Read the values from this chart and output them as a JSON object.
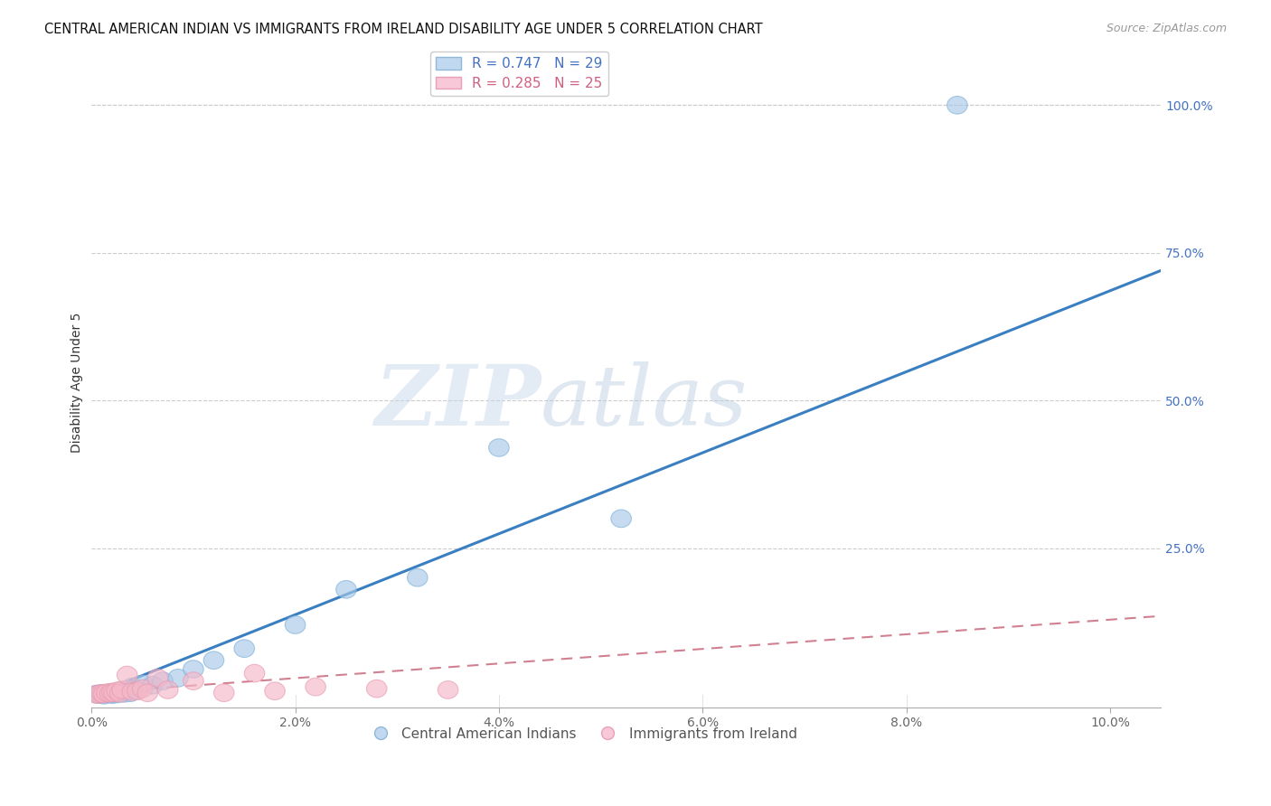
{
  "title": "CENTRAL AMERICAN INDIAN VS IMMIGRANTS FROM IRELAND DISABILITY AGE UNDER 5 CORRELATION CHART",
  "source": "Source: ZipAtlas.com",
  "ylabel": "Disability Age Under 5",
  "x_tick_labels": [
    "0.0%",
    "2.0%",
    "4.0%",
    "6.0%",
    "8.0%",
    "10.0%"
  ],
  "x_tick_vals": [
    0.0,
    2.0,
    4.0,
    6.0,
    8.0,
    10.0
  ],
  "y_tick_labels": [
    "100.0%",
    "75.0%",
    "50.0%",
    "25.0%"
  ],
  "y_tick_vals": [
    100.0,
    75.0,
    50.0,
    25.0
  ],
  "xlim": [
    0.0,
    10.5
  ],
  "ylim": [
    -2.0,
    108.0
  ],
  "legend_entry_1": "R = 0.747   N = 29",
  "legend_entry_2": "R = 0.285   N = 25",
  "legend_label_1": "Central American Indians",
  "legend_label_2": "Immigrants from Ireland",
  "blue_scatter_x": [
    0.05,
    0.08,
    0.1,
    0.12,
    0.15,
    0.18,
    0.2,
    0.22,
    0.25,
    0.28,
    0.3,
    0.32,
    0.35,
    0.38,
    0.4,
    0.45,
    0.5,
    0.6,
    0.7,
    0.85,
    1.0,
    1.2,
    1.5,
    2.0,
    2.5,
    3.2,
    4.0,
    5.2,
    8.5
  ],
  "blue_scatter_y": [
    0.3,
    0.2,
    0.4,
    0.1,
    0.3,
    0.5,
    0.2,
    0.4,
    0.3,
    0.6,
    0.8,
    0.4,
    1.0,
    0.5,
    1.5,
    1.0,
    2.0,
    1.8,
    2.5,
    3.0,
    4.5,
    6.0,
    8.0,
    12.0,
    18.0,
    20.0,
    42.0,
    30.0,
    100.0
  ],
  "pink_scatter_x": [
    0.05,
    0.07,
    0.1,
    0.12,
    0.15,
    0.18,
    0.2,
    0.22,
    0.25,
    0.28,
    0.3,
    0.35,
    0.4,
    0.45,
    0.5,
    0.55,
    0.65,
    0.75,
    1.0,
    1.3,
    1.6,
    1.8,
    2.2,
    2.8,
    3.5
  ],
  "pink_scatter_y": [
    0.2,
    0.3,
    0.4,
    0.3,
    0.5,
    0.4,
    0.6,
    0.5,
    0.8,
    0.4,
    1.0,
    3.5,
    0.7,
    0.8,
    1.2,
    0.5,
    3.0,
    1.0,
    2.5,
    0.5,
    3.8,
    0.8,
    1.5,
    1.2,
    1.0
  ],
  "blue_line_x": [
    0.0,
    10.5
  ],
  "blue_line_y": [
    0.0,
    72.0
  ],
  "pink_line_x": [
    0.0,
    10.5
  ],
  "pink_line_y": [
    0.5,
    13.5
  ],
  "blue_color": "#aac8e8",
  "pink_color": "#f5b8c8",
  "blue_edge_color": "#7ab0d8",
  "pink_edge_color": "#e89ab0",
  "blue_line_color": "#3a7fc1",
  "pink_line_color": "#d08090",
  "watermark_zip": "ZIP",
  "watermark_atlas": "atlas",
  "background_color": "#ffffff",
  "grid_color": "#cccccc",
  "right_axis_color": "#4472c4"
}
